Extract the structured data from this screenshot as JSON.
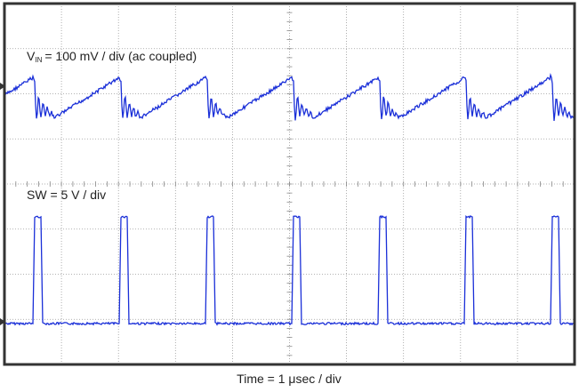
{
  "vin_label": {
    "symbol": "V",
    "subscript": "IN",
    "text": "= 100 mV / div (ac coupled)"
  },
  "sw_label": "SW = 5 V / div",
  "time_label": "Time = 1 μsec / div"
}
